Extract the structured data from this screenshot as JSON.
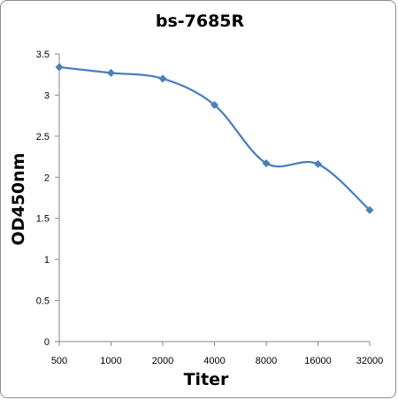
{
  "chart_data": {
    "type": "line",
    "title": "bs-7685R",
    "xlabel": "Titer",
    "ylabel": "OD450nm",
    "categories": [
      "500",
      "1000",
      "2000",
      "4000",
      "8000",
      "16000",
      "32000"
    ],
    "series": [
      {
        "values": [
          3.34,
          3.27,
          3.2,
          2.88,
          2.17,
          2.16,
          1.6
        ]
      }
    ],
    "ylim": [
      0,
      3.5
    ],
    "yticks": [
      "0",
      "0.5",
      "1",
      "1.5",
      "2",
      "2.5",
      "3",
      "3.5"
    ],
    "grid": false,
    "legend": "none",
    "colors": {
      "line": "#4a7ebb",
      "marker": "#4a7ebb",
      "axis": "#868686"
    }
  }
}
